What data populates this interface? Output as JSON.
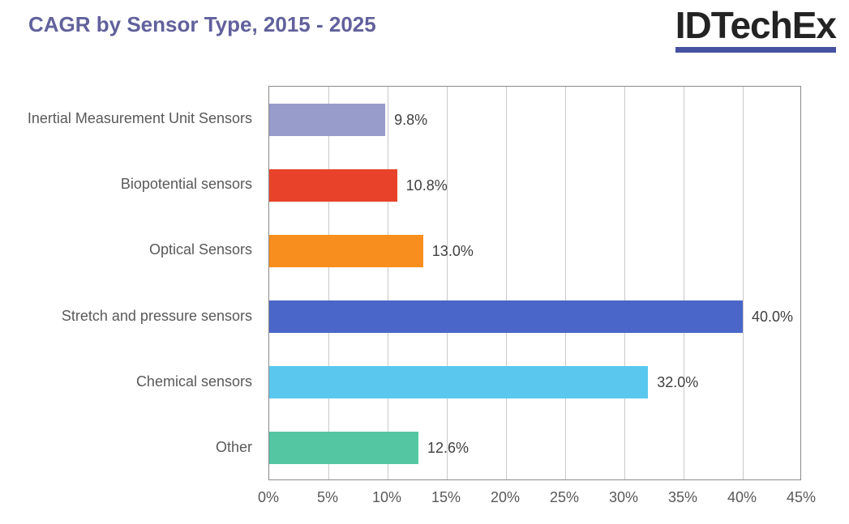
{
  "header": {
    "title": "CAGR by Sensor Type, 2015 - 2025",
    "title_color": "#61619C",
    "logo_text": "IDTechEx",
    "logo_underline_color": "#4652A1"
  },
  "chart_data": {
    "type": "bar",
    "orientation": "horizontal",
    "title": "CAGR by Sensor Type, 2015 - 2025",
    "categories": [
      "Inertial Measurement Unit Sensors",
      "Biopotential sensors",
      "Optical Sensors",
      "Stretch and pressure sensors",
      "Chemical sensors",
      "Other"
    ],
    "values": [
      9.8,
      10.8,
      13.0,
      40.0,
      32.0,
      12.6
    ],
    "value_labels": [
      "9.8%",
      "10.8%",
      "13.0%",
      "40.0%",
      "32.0%",
      "12.6%"
    ],
    "bar_colors": [
      "#989CCB",
      "#E8432A",
      "#F78E1E",
      "#4966C8",
      "#5AC8EE",
      "#55C6A2"
    ],
    "xlabel": "",
    "ylabel": "",
    "xlim": [
      0,
      45
    ],
    "x_tick_step": 5,
    "x_tick_labels": [
      "0%",
      "5%",
      "10%",
      "15%",
      "20%",
      "25%",
      "30%",
      "35%",
      "40%",
      "45%"
    ],
    "grid": "vertical",
    "gridline_color": "#C9C9C9",
    "border_color": "#8A8A8A",
    "legend": "none"
  }
}
